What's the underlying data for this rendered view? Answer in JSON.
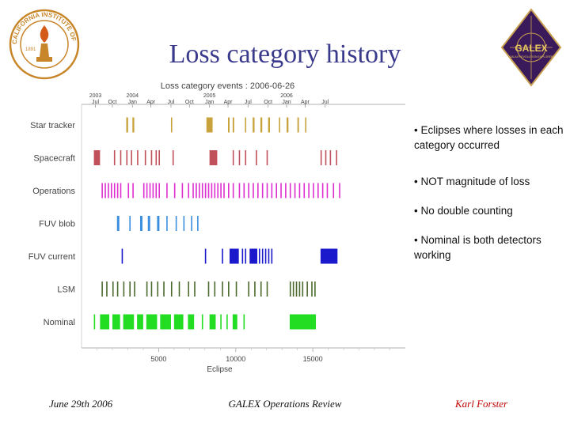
{
  "slide": {
    "title": "Loss category history",
    "bullets": [
      "• Eclipses where losses in each category occurred",
      "• NOT magnitude of loss",
      "• No double counting",
      "• Nominal is both detectors working"
    ],
    "footer": {
      "date": "June 29th 2006",
      "center": "GALEX Operations Review",
      "author": "Karl Forster"
    }
  },
  "logos": {
    "left": "caltech-seal",
    "left_ring_text": "CALIFORNIA INSTITUTE OF TECHNOLOGY",
    "left_year": "1891",
    "right": "galex-logo",
    "right_text": "GALEX",
    "right_subtext": "GALAXY EVOLUTION EXPLORER"
  },
  "chart_data": {
    "type": "event-raster",
    "title": "Loss category events : 2006-06-26",
    "xlabel": "Eclipse",
    "xlim": [
      0,
      21000
    ],
    "xticks": [
      5000,
      10000,
      15000
    ],
    "xtick_labels": [
      "5000",
      "10000",
      "15000"
    ],
    "top_axis_labels": [
      {
        "x": 900,
        "label": "2003",
        "sub": "Jul"
      },
      {
        "x": 2000,
        "label": "",
        "sub": "Oct"
      },
      {
        "x": 3300,
        "label": "2004",
        "sub": "Jan"
      },
      {
        "x": 4500,
        "label": "",
        "sub": "Apr"
      },
      {
        "x": 5800,
        "label": "",
        "sub": "Jul"
      },
      {
        "x": 7000,
        "label": "",
        "sub": "Oct"
      },
      {
        "x": 8300,
        "label": "2005",
        "sub": "Jan"
      },
      {
        "x": 9500,
        "label": "",
        "sub": "Apr"
      },
      {
        "x": 10800,
        "label": "",
        "sub": "Jul"
      },
      {
        "x": 12100,
        "label": "",
        "sub": "Oct"
      },
      {
        "x": 13300,
        "label": "2006",
        "sub": "Jan"
      },
      {
        "x": 14500,
        "label": "",
        "sub": "Apr"
      },
      {
        "x": 15800,
        "label": "",
        "sub": "Jul"
      }
    ],
    "series": [
      {
        "name": "Star tracker",
        "color": "#c8a23a",
        "events": [
          [
            2900,
            120
          ],
          [
            3300,
            120
          ],
          [
            5800,
            60
          ],
          [
            8100,
            300
          ],
          [
            8300,
            200
          ],
          [
            9500,
            100
          ],
          [
            9800,
            100
          ],
          [
            10600,
            80
          ],
          [
            11100,
            120
          ],
          [
            11600,
            120
          ],
          [
            12100,
            120
          ],
          [
            12800,
            80
          ],
          [
            13300,
            120
          ],
          [
            14000,
            100
          ],
          [
            14500,
            80
          ]
        ]
      },
      {
        "name": "Spacecraft",
        "color": "#c0505a",
        "events": [
          [
            800,
            400
          ],
          [
            2100,
            80
          ],
          [
            2500,
            60
          ],
          [
            2900,
            80
          ],
          [
            3200,
            60
          ],
          [
            3600,
            60
          ],
          [
            4100,
            60
          ],
          [
            4500,
            60
          ],
          [
            4800,
            60
          ],
          [
            5000,
            80
          ],
          [
            5900,
            60
          ],
          [
            8300,
            500
          ],
          [
            9800,
            60
          ],
          [
            10200,
            60
          ],
          [
            10600,
            60
          ],
          [
            11300,
            60
          ],
          [
            12000,
            80
          ],
          [
            15500,
            60
          ],
          [
            15800,
            60
          ],
          [
            16100,
            80
          ],
          [
            16500,
            60
          ]
        ]
      },
      {
        "name": "Operations",
        "color": "#dd2ecf",
        "events": [
          [
            1300,
            80
          ],
          [
            1500,
            80
          ],
          [
            1700,
            80
          ],
          [
            1900,
            80
          ],
          [
            2100,
            80
          ],
          [
            2300,
            80
          ],
          [
            2500,
            80
          ],
          [
            3000,
            80
          ],
          [
            3300,
            80
          ],
          [
            4000,
            80
          ],
          [
            4200,
            80
          ],
          [
            4400,
            80
          ],
          [
            4600,
            80
          ],
          [
            4800,
            80
          ],
          [
            5000,
            80
          ],
          [
            5500,
            80
          ],
          [
            6000,
            80
          ],
          [
            6500,
            80
          ],
          [
            6900,
            80
          ],
          [
            7200,
            80
          ],
          [
            7400,
            80
          ],
          [
            7600,
            80
          ],
          [
            7800,
            80
          ],
          [
            8000,
            80
          ],
          [
            8200,
            80
          ],
          [
            8400,
            80
          ],
          [
            8600,
            80
          ],
          [
            8800,
            80
          ],
          [
            9000,
            80
          ],
          [
            9200,
            80
          ],
          [
            9500,
            80
          ],
          [
            9800,
            80
          ],
          [
            10200,
            80
          ],
          [
            10500,
            80
          ],
          [
            10800,
            80
          ],
          [
            11100,
            80
          ],
          [
            11400,
            80
          ],
          [
            11700,
            80
          ],
          [
            12000,
            80
          ],
          [
            12300,
            80
          ],
          [
            12600,
            80
          ],
          [
            12900,
            80
          ],
          [
            13200,
            80
          ],
          [
            13500,
            80
          ],
          [
            13800,
            80
          ],
          [
            14100,
            80
          ],
          [
            14400,
            80
          ],
          [
            14700,
            80
          ],
          [
            15000,
            80
          ],
          [
            15300,
            80
          ],
          [
            15600,
            80
          ],
          [
            15900,
            80
          ],
          [
            16300,
            80
          ],
          [
            16700,
            80
          ]
        ]
      },
      {
        "name": "FUV blob",
        "color": "#3a8ee0",
        "events": [
          [
            2300,
            150
          ],
          [
            3100,
            80
          ],
          [
            3800,
            150
          ],
          [
            4300,
            150
          ],
          [
            4900,
            150
          ],
          [
            5500,
            80
          ],
          [
            6100,
            80
          ],
          [
            6600,
            80
          ],
          [
            7100,
            80
          ],
          [
            7500,
            80
          ]
        ]
      },
      {
        "name": "FUV current",
        "color": "#1a1acc",
        "events": [
          [
            2600,
            60
          ],
          [
            8000,
            60
          ],
          [
            9100,
            80
          ],
          [
            9600,
            600
          ],
          [
            10400,
            60
          ],
          [
            10600,
            80
          ],
          [
            10900,
            500
          ],
          [
            11500,
            80
          ],
          [
            11700,
            80
          ],
          [
            11900,
            80
          ],
          [
            12100,
            80
          ],
          [
            12300,
            80
          ],
          [
            15500,
            1100
          ]
        ]
      },
      {
        "name": "LSM",
        "color": "#4a6a2e",
        "events": [
          [
            1300,
            80
          ],
          [
            1600,
            80
          ],
          [
            2000,
            80
          ],
          [
            2300,
            80
          ],
          [
            2700,
            80
          ],
          [
            3100,
            80
          ],
          [
            3400,
            80
          ],
          [
            4200,
            80
          ],
          [
            4500,
            80
          ],
          [
            4900,
            80
          ],
          [
            5300,
            80
          ],
          [
            5800,
            80
          ],
          [
            6300,
            80
          ],
          [
            6900,
            80
          ],
          [
            7300,
            80
          ],
          [
            8200,
            80
          ],
          [
            8600,
            80
          ],
          [
            9100,
            80
          ],
          [
            9500,
            80
          ],
          [
            10000,
            80
          ],
          [
            10800,
            80
          ],
          [
            11200,
            80
          ],
          [
            11600,
            80
          ],
          [
            12000,
            80
          ],
          [
            13500,
            80
          ],
          [
            13700,
            80
          ],
          [
            13900,
            80
          ],
          [
            14100,
            80
          ],
          [
            14300,
            80
          ],
          [
            14600,
            80
          ],
          [
            14900,
            80
          ],
          [
            15100,
            80
          ]
        ]
      },
      {
        "name": "Nominal",
        "color": "#22dd22",
        "events": [
          [
            800,
            60
          ],
          [
            1200,
            600
          ],
          [
            2000,
            500
          ],
          [
            2700,
            700
          ],
          [
            3600,
            400
          ],
          [
            4200,
            700
          ],
          [
            5100,
            700
          ],
          [
            6000,
            600
          ],
          [
            6900,
            400
          ],
          [
            7800,
            60
          ],
          [
            8300,
            400
          ],
          [
            9000,
            60
          ],
          [
            9400,
            60
          ],
          [
            9800,
            300
          ],
          [
            10500,
            60
          ],
          [
            13500,
            1700
          ]
        ]
      }
    ]
  }
}
